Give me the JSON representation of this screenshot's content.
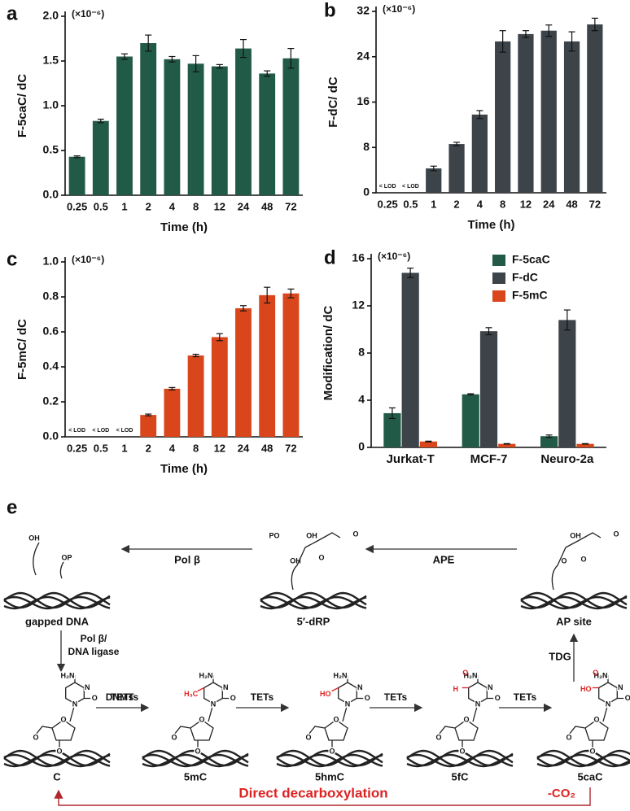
{
  "chart_data": [
    {
      "type": "bar",
      "panel": "a",
      "y_multiplier": "(×10⁻⁶)",
      "xlabel": "Time (h)",
      "ylabel": "F-5caC/ dC",
      "color": "#225a48",
      "categories": [
        "0.25",
        "0.5",
        "1",
        "2",
        "4",
        "8",
        "12",
        "24",
        "48",
        "72"
      ],
      "values": [
        0.43,
        0.83,
        1.55,
        1.7,
        1.52,
        1.47,
        1.44,
        1.64,
        1.36,
        1.53
      ],
      "errors": [
        0.01,
        0.02,
        0.03,
        0.09,
        0.03,
        0.09,
        0.02,
        0.1,
        0.03,
        0.11
      ],
      "ylim": [
        0,
        2.0
      ],
      "yticks": [
        {
          "value": 0,
          "label": "0.0"
        },
        0.5,
        {
          "value": 1,
          "label": "1.0"
        },
        1.5,
        {
          "value": 2,
          "label": "2.0"
        }
      ]
    },
    {
      "type": "bar",
      "panel": "b",
      "y_multiplier": "(×10⁻⁶)",
      "xlabel": "Time (h)",
      "ylabel": "F-dC/ dC",
      "color": "#3c4349",
      "categories": [
        "0.25",
        "0.5",
        "1",
        "2",
        "4",
        "8",
        "12",
        "24",
        "48",
        "72"
      ],
      "values": [
        null,
        null,
        4.3,
        8.6,
        13.8,
        26.7,
        28.0,
        28.6,
        26.7,
        29.7
      ],
      "value_labels": [
        "< LOD",
        "< LOD",
        null,
        null,
        null,
        null,
        null,
        null,
        null,
        null
      ],
      "errors": [
        null,
        null,
        0.4,
        0.3,
        0.7,
        1.9,
        0.6,
        1.0,
        1.7,
        1.1
      ],
      "ylim": [
        0,
        32
      ],
      "yticks": [
        0,
        8,
        16,
        24,
        32
      ]
    },
    {
      "type": "bar",
      "panel": "c",
      "y_multiplier": "(×10⁻⁶)",
      "xlabel": "Time (h)",
      "ylabel": "F-5mC/ dC",
      "color": "#d9461c",
      "categories": [
        "0.25",
        "0.5",
        "1",
        "2",
        "4",
        "8",
        "12",
        "24",
        "48",
        "72"
      ],
      "values": [
        null,
        null,
        null,
        0.125,
        0.275,
        0.465,
        0.57,
        0.735,
        0.81,
        0.82
      ],
      "value_labels": [
        "< LOD",
        "< LOD",
        "< LOD",
        null,
        null,
        null,
        null,
        null,
        null,
        null
      ],
      "errors": [
        null,
        null,
        null,
        0.005,
        0.007,
        0.007,
        0.02,
        0.015,
        0.045,
        0.025
      ],
      "ylim": [
        0,
        1.0
      ],
      "yticks": [
        {
          "value": 0,
          "label": "0.0"
        },
        0.2,
        0.4,
        0.6,
        0.8,
        {
          "value": 1,
          "label": "1.0"
        }
      ]
    },
    {
      "type": "bar",
      "panel": "d",
      "y_multiplier": "(×10⁻⁶)",
      "ylabel": "Modification/ dC",
      "legend": "top-right",
      "categories": [
        "Jurkat-T",
        "MCF-7",
        "Neuro-2a"
      ],
      "series": [
        {
          "name": "F-5caC",
          "color": "#225a48",
          "values": [
            2.9,
            4.5,
            0.95
          ],
          "errors": [
            0.45,
            0.05,
            0.1
          ]
        },
        {
          "name": "F-dC",
          "color": "#3c4349",
          "values": [
            14.8,
            9.85,
            10.8
          ],
          "errors": [
            0.4,
            0.3,
            0.85
          ]
        },
        {
          "name": "F-5mC",
          "color": "#d9461c",
          "values": [
            0.5,
            0.3,
            0.3
          ],
          "errors": [
            0.03,
            0.02,
            0.02
          ]
        }
      ],
      "ylim": [
        0,
        16
      ],
      "yticks": [
        0,
        4,
        8,
        12,
        16
      ]
    }
  ],
  "diagram": {
    "panel": "e",
    "top_nodes": [
      {
        "label": "gapped DNA",
        "atoms": [
          "OH",
          "OP"
        ]
      },
      {
        "label": "5′-dRP",
        "atoms": [
          "PO",
          "OH",
          "O",
          "OH",
          "O"
        ]
      },
      {
        "label": "AP site",
        "atoms": [
          "O",
          "OH",
          "O",
          "O"
        ]
      }
    ],
    "nodes": [
      {
        "label": "C",
        "atoms": [
          "H₂N",
          "N",
          "N",
          "O",
          "O",
          "O",
          "O"
        ],
        "group": []
      },
      {
        "label": "5mC",
        "atoms": [
          "H₂N",
          "N",
          "N",
          "O",
          "O",
          "O",
          "O"
        ],
        "group": [
          "H₃C"
        ]
      },
      {
        "label": "5hmC",
        "atoms": [
          "H₂N",
          "N",
          "N",
          "O",
          "O",
          "O",
          "O"
        ],
        "group": [
          "HO"
        ]
      },
      {
        "label": "5fC",
        "atoms": [
          "H₂N",
          "N",
          "N",
          "O",
          "O",
          "O",
          "O"
        ],
        "group": [
          "H",
          "O"
        ]
      },
      {
        "label": "5caC",
        "atoms": [
          "H₂N",
          "N",
          "N",
          "O",
          "O",
          "O",
          "O"
        ],
        "group": [
          "HO",
          "O"
        ]
      }
    ],
    "edges": [
      {
        "label": [
          "Pol β"
        ]
      },
      {
        "label": [
          "APE"
        ]
      },
      {
        "label": [
          "Pol β/",
          "DNA ligase"
        ]
      },
      {
        "label": [
          "TDG"
        ]
      },
      {
        "label": [
          "DNMTs"
        ]
      },
      {
        "label": [
          "TETs"
        ]
      },
      {
        "label": [
          "TETs"
        ]
      },
      {
        "label": [
          "TETs"
        ]
      },
      {
        "label": [
          "Direct decarboxylation",
          "-CO₂"
        ]
      }
    ]
  }
}
